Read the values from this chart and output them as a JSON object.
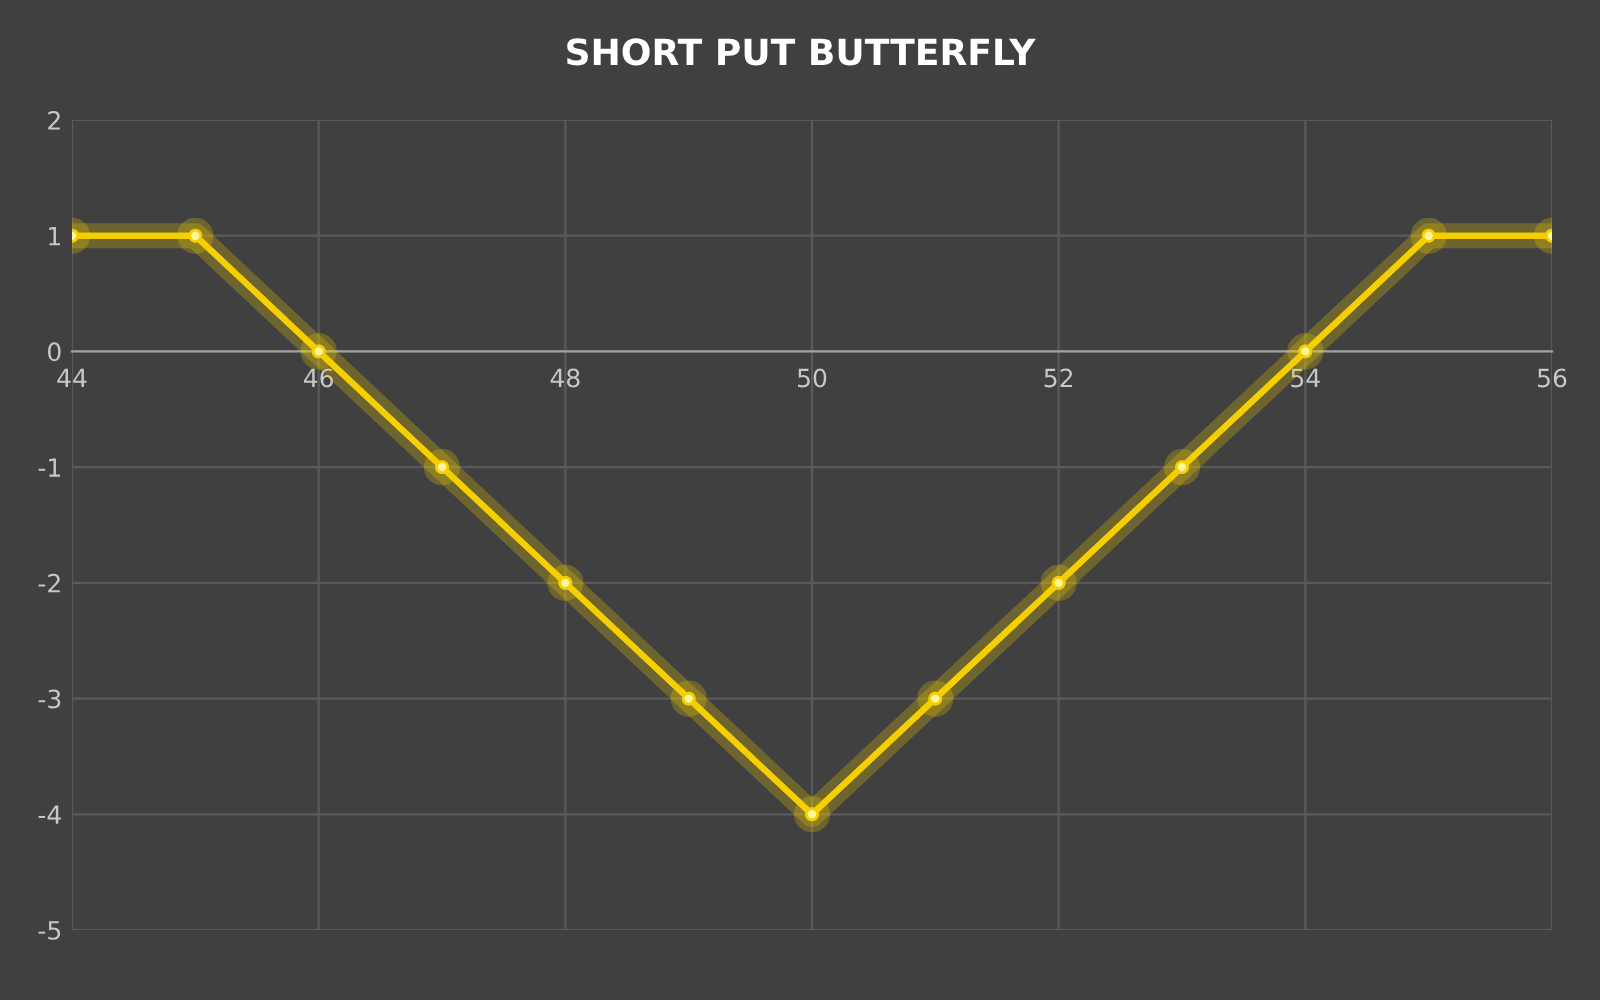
{
  "chart_data": {
    "type": "line",
    "title": "SHORT PUT BUTTERFLY",
    "x": [
      44,
      45,
      46,
      47,
      48,
      49,
      50,
      51,
      52,
      53,
      54,
      55,
      56
    ],
    "series": [
      {
        "color": "#f5cf00",
        "values": [
          1,
          1,
          0,
          -1,
          -2,
          -3,
          -4,
          -3,
          -2,
          -1,
          0,
          1,
          1
        ]
      }
    ],
    "xlim": [
      44,
      56
    ],
    "xticks": [
      44,
      46,
      48,
      50,
      52,
      54,
      56
    ],
    "ylim": [
      -5,
      2
    ],
    "yticks": [
      -5,
      -4,
      -3,
      -2,
      -1,
      0,
      1,
      2
    ],
    "grid": true,
    "marker": "circle",
    "line_style": "solid"
  }
}
